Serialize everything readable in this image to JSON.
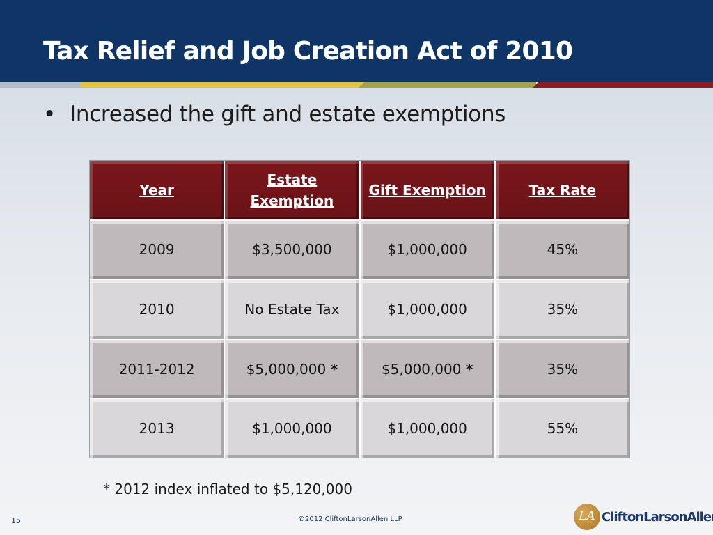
{
  "slide": {
    "title": "Tax Relief and Job Creation Act of 2010",
    "bullet_symbol": "•",
    "bullet": "Increased the gift and estate exemptions",
    "footnote": "* 2012 index inflated to $5,120,000",
    "page_number": "15",
    "copyright": "©2012 CliftonLarsonAllen LLP",
    "logo_text": "CliftonLarsonAllen",
    "logo_mark": "LA"
  },
  "table": {
    "headers": [
      "Year",
      "Estate Exemption",
      "Gift Exemption",
      "Tax Rate"
    ],
    "rows": [
      [
        "2009",
        "$3,500,000",
        "$1,000,000",
        "45%"
      ],
      [
        "2010",
        "No Estate Tax",
        "$1,000,000",
        "35%"
      ],
      [
        "2011-2012",
        "$5,000,000",
        "$5,000,000",
        "35%"
      ],
      [
        "2013",
        "$1,000,000",
        "$1,000,000",
        "55%"
      ]
    ],
    "star": "*"
  },
  "colors": {
    "header_bg": "#0e3566",
    "table_header_bg": "#6e1418",
    "row_dark": "#bfb9bb",
    "row_light": "#d9d7d9"
  }
}
